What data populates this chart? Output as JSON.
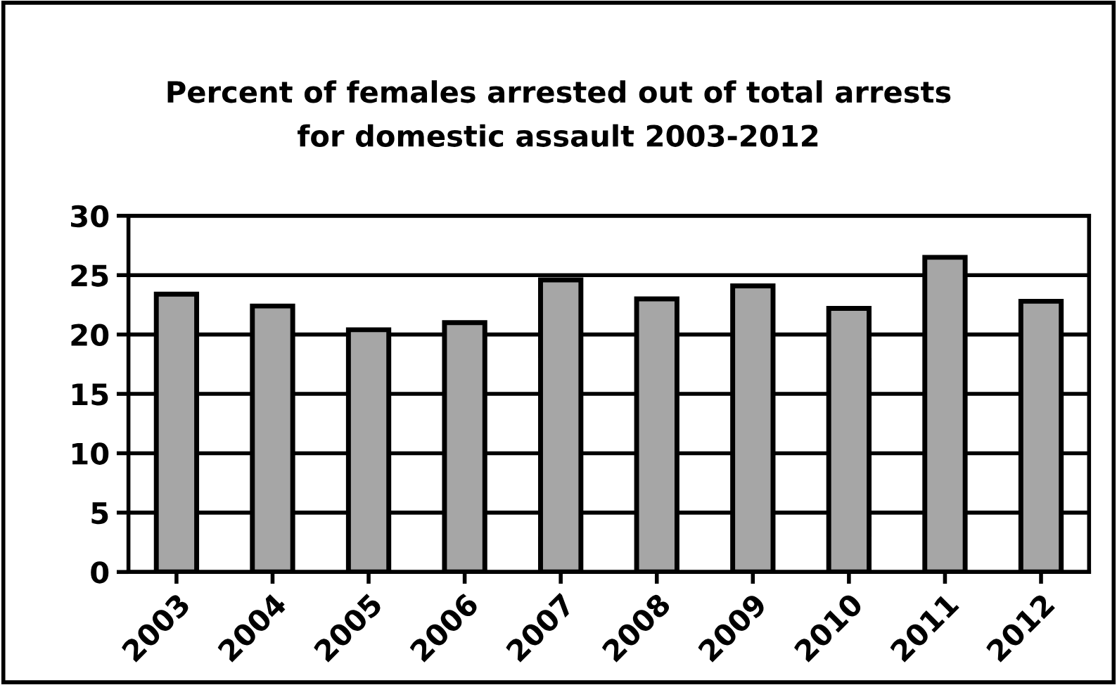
{
  "chart_data": {
    "type": "bar",
    "title": "Percent of females arrested out of total arrests\nfor domestic assault 2003-2012",
    "categories": [
      "2003",
      "2004",
      "2005",
      "2006",
      "2007",
      "2008",
      "2009",
      "2010",
      "2011",
      "2012"
    ],
    "values": [
      23.4,
      22.4,
      20.4,
      21.0,
      24.6,
      23.0,
      24.1,
      22.2,
      26.5,
      22.8
    ],
    "color": "#a6a6a6",
    "ylim": [
      0,
      30
    ],
    "yticks": [
      0,
      5,
      10,
      15,
      20,
      25,
      30
    ],
    "grid": "y"
  }
}
